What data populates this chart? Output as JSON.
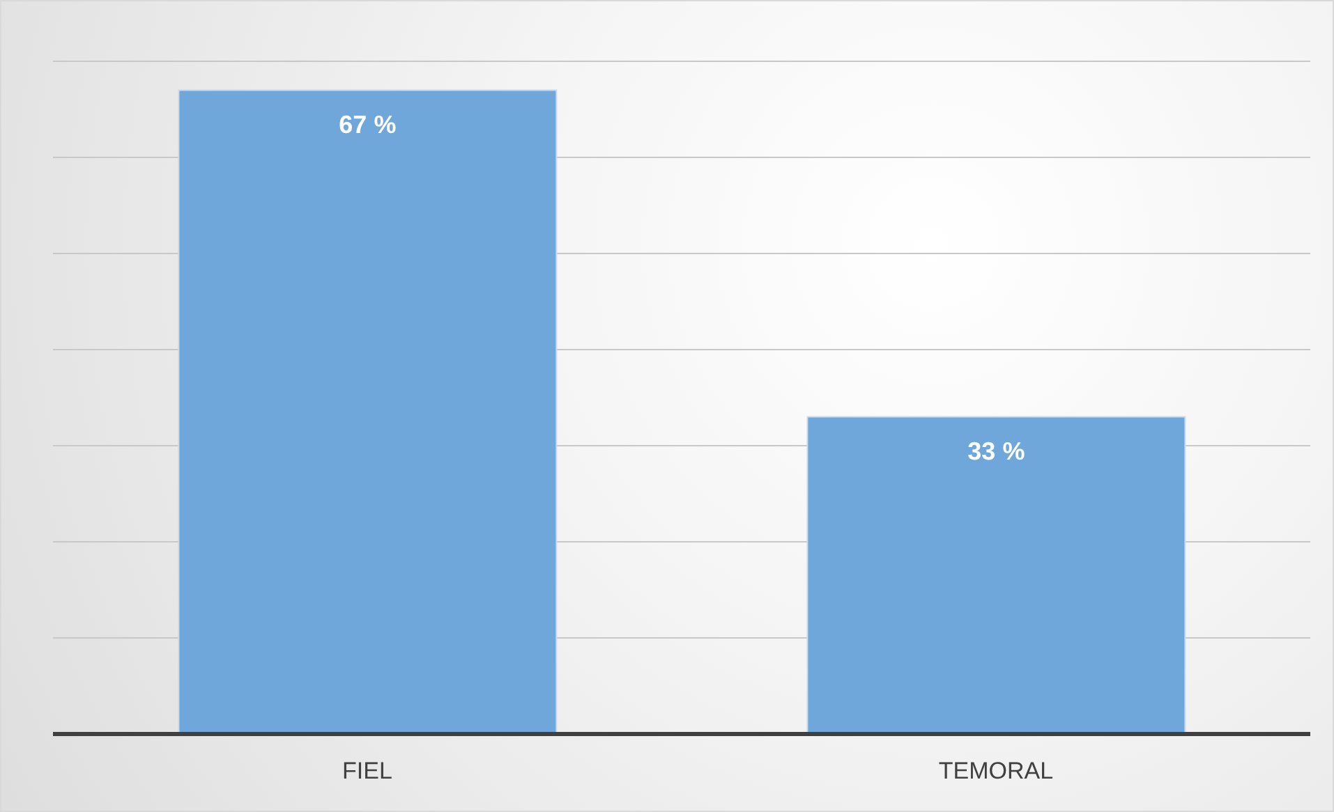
{
  "chart_data": {
    "type": "bar",
    "categories": [
      "FIEL",
      "TEMORAL"
    ],
    "values": [
      67,
      33
    ],
    "value_labels": [
      "67 %",
      "33 %"
    ],
    "color": "#6fa7db",
    "grid": "y",
    "tick_labels": "x"
  }
}
